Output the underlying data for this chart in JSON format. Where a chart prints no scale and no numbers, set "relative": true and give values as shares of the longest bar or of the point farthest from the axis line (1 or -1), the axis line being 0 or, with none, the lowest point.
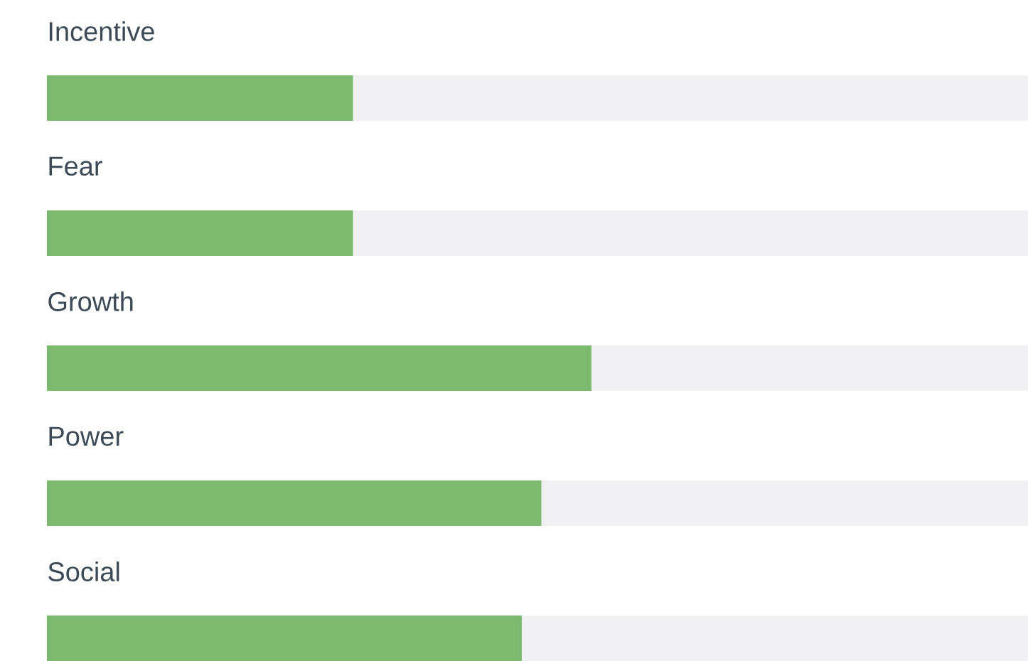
{
  "chart_data": {
    "type": "bar",
    "orientation": "horizontal",
    "stacked": true,
    "relative": true,
    "categories": [
      "Incentive",
      "Fear",
      "Growth",
      "Power",
      "Social"
    ],
    "series": [
      {
        "color": "#7db96e",
        "values": [
          0.312,
          0.312,
          0.555,
          0.504,
          0.484
        ]
      },
      {
        "color": "#f1f1f4",
        "values": [
          0.688,
          0.688,
          0.445,
          0.496,
          0.516
        ]
      }
    ]
  }
}
